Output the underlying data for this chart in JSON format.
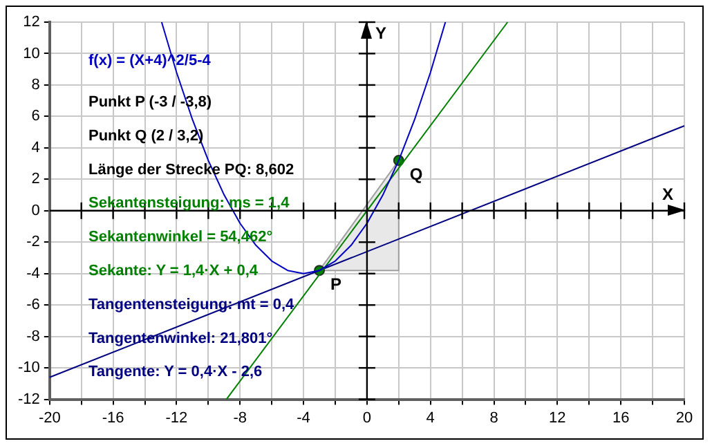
{
  "chart_data": {
    "type": "line",
    "xlabel": "X",
    "ylabel": "Y",
    "xlim": [
      -20,
      20
    ],
    "ylim": [
      -12,
      12
    ],
    "xticks": [
      -20,
      {
        "value": -18,
        "label": null
      },
      -16,
      {
        "value": -14,
        "label": null
      },
      -12,
      {
        "value": -10,
        "label": null
      },
      -8,
      {
        "value": -6,
        "label": null
      },
      -4,
      {
        "value": -2,
        "label": null
      },
      0,
      {
        "value": 2,
        "label": null
      },
      4,
      {
        "value": 6,
        "label": null
      },
      8,
      {
        "value": 10,
        "label": null
      },
      12,
      {
        "value": 14,
        "label": null
      },
      16,
      {
        "value": 18,
        "label": null
      },
      20
    ],
    "yticks": [
      -12,
      -10,
      -8,
      -6,
      -4,
      -2,
      0,
      2,
      4,
      6,
      8,
      10,
      12
    ],
    "grid": true,
    "legend": false,
    "marker": "none",
    "line_style": "solid",
    "series": [
      {
        "type": "area",
        "color": "#e8e8e8",
        "x": [
          -3,
          2,
          2,
          -3
        ],
        "values": [
          -3.8,
          3.2,
          -3.8,
          -3.8
        ]
      },
      {
        "color": "#0000c0",
        "x": [
          -12.94,
          -12,
          -11,
          -10,
          -9,
          -8,
          -7,
          -6,
          -5,
          -4,
          -3,
          -2,
          -1,
          0,
          1,
          2,
          3,
          4,
          4.94
        ],
        "values": [
          12,
          8.8,
          5.8,
          3.2,
          1,
          -0.8,
          -2.2,
          -3.2,
          -3.8,
          -4,
          -3.8,
          -3.2,
          -2.2,
          -0.8,
          1,
          3.2,
          5.8,
          8.8,
          12
        ]
      },
      {
        "color": "#008000",
        "x": [
          -8.86,
          8.86
        ],
        "values": [
          -12,
          12
        ]
      },
      {
        "color": "#000080",
        "x": [
          -20,
          20
        ],
        "values": [
          -10.6,
          5.4
        ]
      },
      {
        "type": "scatter",
        "color": "#008000",
        "marker": "circle",
        "x": [
          -3,
          2
        ],
        "values": [
          -3.8,
          3.2
        ]
      }
    ],
    "annotations": [
      "f(x) = (X+4)^2/5-4",
      "Punkt P (-3 / -3,8)",
      "Punkt Q (2 / 3,2)",
      "Länge der Strecke PQ: 8,602",
      "Sekantensteigung: ms = 1,4",
      "Sekantenwinkel = 54,462°",
      "Sekante: Y = 1,4·X + 0,4",
      "Tangentensteigung: mt = 0,4",
      "Tangentenwinkel: 21,801°",
      "Tangente: Y = 0,4·X - 2,6",
      {
        "text": "P",
        "x": -3,
        "y": -3.8
      },
      {
        "text": "Q",
        "x": 2,
        "y": 3.2
      }
    ]
  }
}
